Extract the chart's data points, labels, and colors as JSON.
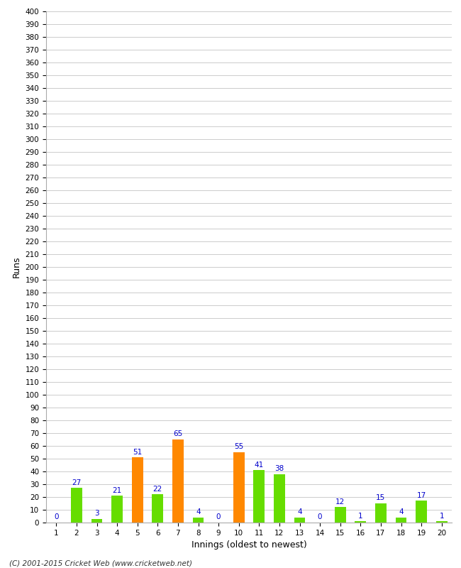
{
  "values": [
    0,
    27,
    3,
    21,
    51,
    22,
    65,
    4,
    0,
    55,
    41,
    38,
    4,
    0,
    12,
    1,
    15,
    4,
    17,
    1
  ],
  "innings": [
    1,
    2,
    3,
    4,
    5,
    6,
    7,
    8,
    9,
    10,
    11,
    12,
    13,
    14,
    15,
    16,
    17,
    18,
    19,
    20
  ],
  "orange_indices": [
    4,
    6,
    9
  ],
  "bar_color_default": "#66dd00",
  "bar_color_highlight": "#ff8800",
  "label_color": "#0000cc",
  "ylabel": "Runs",
  "xlabel": "Innings (oldest to newest)",
  "footer": "(C) 2001-2015 Cricket Web (www.cricketweb.net)",
  "ylim_min": 0,
  "ylim_max": 400,
  "ytick_step": 10,
  "background_color": "#ffffff",
  "grid_color": "#cccccc",
  "bar_width": 0.55
}
